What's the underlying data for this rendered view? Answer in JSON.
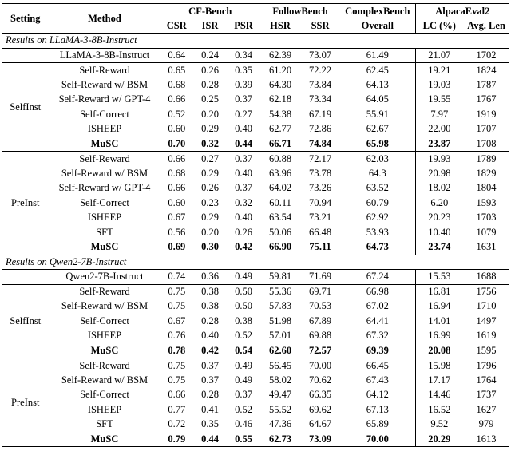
{
  "table": {
    "header": {
      "setting_label": "Setting",
      "method_label": "Method",
      "groups": [
        {
          "label": "CF-Bench",
          "subcols": [
            "CSR",
            "ISR",
            "PSR"
          ]
        },
        {
          "label": "FollowBench",
          "subcols": [
            "HSR",
            "SSR"
          ]
        },
        {
          "label": "ComplexBench",
          "subcols": [
            "Overall"
          ]
        },
        {
          "label": "AlpacaEval2",
          "subcols": [
            "LC (%)",
            "Avg. Len"
          ]
        }
      ]
    },
    "sections": [
      {
        "title": "Results on LLaMA-3-8B-Instruct",
        "base_row": {
          "method": "LLaMA-3-8B-Instruct",
          "bold": false,
          "values": [
            "0.64",
            "0.24",
            "0.34",
            "62.39",
            "73.07",
            "61.49",
            "21.07",
            "1702"
          ]
        },
        "groups": [
          {
            "setting": "SelfInst",
            "rows": [
              {
                "method": "Self-Reward",
                "bold": false,
                "values": [
                  "0.65",
                  "0.26",
                  "0.35",
                  "61.20",
                  "72.22",
                  "62.45",
                  "19.21",
                  "1824"
                ]
              },
              {
                "method": "Self-Reward w/ BSM",
                "bold": false,
                "values": [
                  "0.68",
                  "0.28",
                  "0.39",
                  "64.30",
                  "73.84",
                  "64.13",
                  "19.03",
                  "1787"
                ]
              },
              {
                "method": "Self-Reward w/ GPT-4",
                "bold": false,
                "values": [
                  "0.66",
                  "0.25",
                  "0.37",
                  "62.18",
                  "73.34",
                  "64.05",
                  "19.55",
                  "1767"
                ]
              },
              {
                "method": "Self-Correct",
                "bold": false,
                "values": [
                  "0.52",
                  "0.20",
                  "0.27",
                  "54.38",
                  "67.19",
                  "55.91",
                  "7.97",
                  "1919"
                ]
              },
              {
                "method": "ISHEEP",
                "bold": false,
                "values": [
                  "0.60",
                  "0.29",
                  "0.40",
                  "62.77",
                  "72.86",
                  "62.67",
                  "22.00",
                  "1707"
                ]
              },
              {
                "method": "MuSC",
                "bold": true,
                "values": [
                  "0.70",
                  "0.32",
                  "0.44",
                  "66.71",
                  "74.84",
                  "65.98",
                  "23.87",
                  "1708"
                ]
              }
            ]
          },
          {
            "setting": "PreInst",
            "rows": [
              {
                "method": "Self-Reward",
                "bold": false,
                "values": [
                  "0.66",
                  "0.27",
                  "0.37",
                  "60.88",
                  "72.17",
                  "62.03",
                  "19.93",
                  "1789"
                ]
              },
              {
                "method": "Self-Reward w/ BSM",
                "bold": false,
                "values": [
                  "0.68",
                  "0.29",
                  "0.40",
                  "63.96",
                  "73.78",
                  "64.3",
                  "20.98",
                  "1829"
                ]
              },
              {
                "method": "Self-Reward w/ GPT-4",
                "bold": false,
                "values": [
                  "0.66",
                  "0.26",
                  "0.37",
                  "64.02",
                  "73.26",
                  "63.52",
                  "18.02",
                  "1804"
                ]
              },
              {
                "method": "Self-Correct",
                "bold": false,
                "values": [
                  "0.60",
                  "0.23",
                  "0.32",
                  "60.11",
                  "70.94",
                  "60.79",
                  "6.20",
                  "1593"
                ]
              },
              {
                "method": "ISHEEP",
                "bold": false,
                "values": [
                  "0.67",
                  "0.29",
                  "0.40",
                  "63.54",
                  "73.21",
                  "62.92",
                  "20.23",
                  "1703"
                ]
              },
              {
                "method": "SFT",
                "bold": false,
                "values": [
                  "0.56",
                  "0.20",
                  "0.26",
                  "50.06",
                  "66.48",
                  "53.93",
                  "10.40",
                  "1079"
                ]
              },
              {
                "method": "MuSC",
                "bold": true,
                "values": [
                  "0.69",
                  "0.30",
                  "0.42",
                  "66.90",
                  "75.11",
                  "64.73",
                  "23.74",
                  "1631"
                ]
              }
            ]
          }
        ]
      },
      {
        "title": "Results on Qwen2-7B-Instruct",
        "base_row": {
          "method": "Qwen2-7B-Instruct",
          "bold": false,
          "values": [
            "0.74",
            "0.36",
            "0.49",
            "59.81",
            "71.69",
            "67.24",
            "15.53",
            "1688"
          ]
        },
        "groups": [
          {
            "setting": "SelfInst",
            "rows": [
              {
                "method": "Self-Reward",
                "bold": false,
                "values": [
                  "0.75",
                  "0.38",
                  "0.50",
                  "55.36",
                  "69.71",
                  "66.98",
                  "16.81",
                  "1756"
                ]
              },
              {
                "method": "Self-Reward w/ BSM",
                "bold": false,
                "values": [
                  "0.75",
                  "0.38",
                  "0.50",
                  "57.83",
                  "70.53",
                  "67.02",
                  "16.94",
                  "1710"
                ]
              },
              {
                "method": "Self-Correct",
                "bold": false,
                "values": [
                  "0.67",
                  "0.28",
                  "0.38",
                  "51.98",
                  "67.89",
                  "64.41",
                  "14.01",
                  "1497"
                ]
              },
              {
                "method": "ISHEEP",
                "bold": false,
                "values": [
                  "0.76",
                  "0.40",
                  "0.52",
                  "57.01",
                  "69.88",
                  "67.32",
                  "16.99",
                  "1619"
                ]
              },
              {
                "method": "MuSC",
                "bold": true,
                "values": [
                  "0.78",
                  "0.42",
                  "0.54",
                  "62.60",
                  "72.57",
                  "69.39",
                  "20.08",
                  "1595"
                ]
              }
            ]
          },
          {
            "setting": "PreInst",
            "rows": [
              {
                "method": "Self-Reward",
                "bold": false,
                "values": [
                  "0.75",
                  "0.37",
                  "0.49",
                  "56.45",
                  "70.00",
                  "66.45",
                  "15.98",
                  "1796"
                ]
              },
              {
                "method": "Self-Reward w/ BSM",
                "bold": false,
                "values": [
                  "0.75",
                  "0.37",
                  "0.49",
                  "58.02",
                  "70.62",
                  "67.43",
                  "17.17",
                  "1764"
                ]
              },
              {
                "method": "Self-Correct",
                "bold": false,
                "values": [
                  "0.66",
                  "0.28",
                  "0.37",
                  "49.47",
                  "66.35",
                  "64.12",
                  "14.46",
                  "1737"
                ]
              },
              {
                "method": "ISHEEP",
                "bold": false,
                "values": [
                  "0.77",
                  "0.41",
                  "0.52",
                  "55.52",
                  "69.62",
                  "67.13",
                  "16.52",
                  "1627"
                ]
              },
              {
                "method": "SFT",
                "bold": false,
                "values": [
                  "0.72",
                  "0.35",
                  "0.46",
                  "47.36",
                  "64.67",
                  "65.89",
                  "9.52",
                  "979"
                ]
              },
              {
                "method": "MuSC",
                "bold": true,
                "values": [
                  "0.79",
                  "0.44",
                  "0.55",
                  "62.73",
                  "73.09",
                  "70.00",
                  "20.29",
                  "1613"
                ]
              }
            ]
          }
        ]
      }
    ]
  }
}
